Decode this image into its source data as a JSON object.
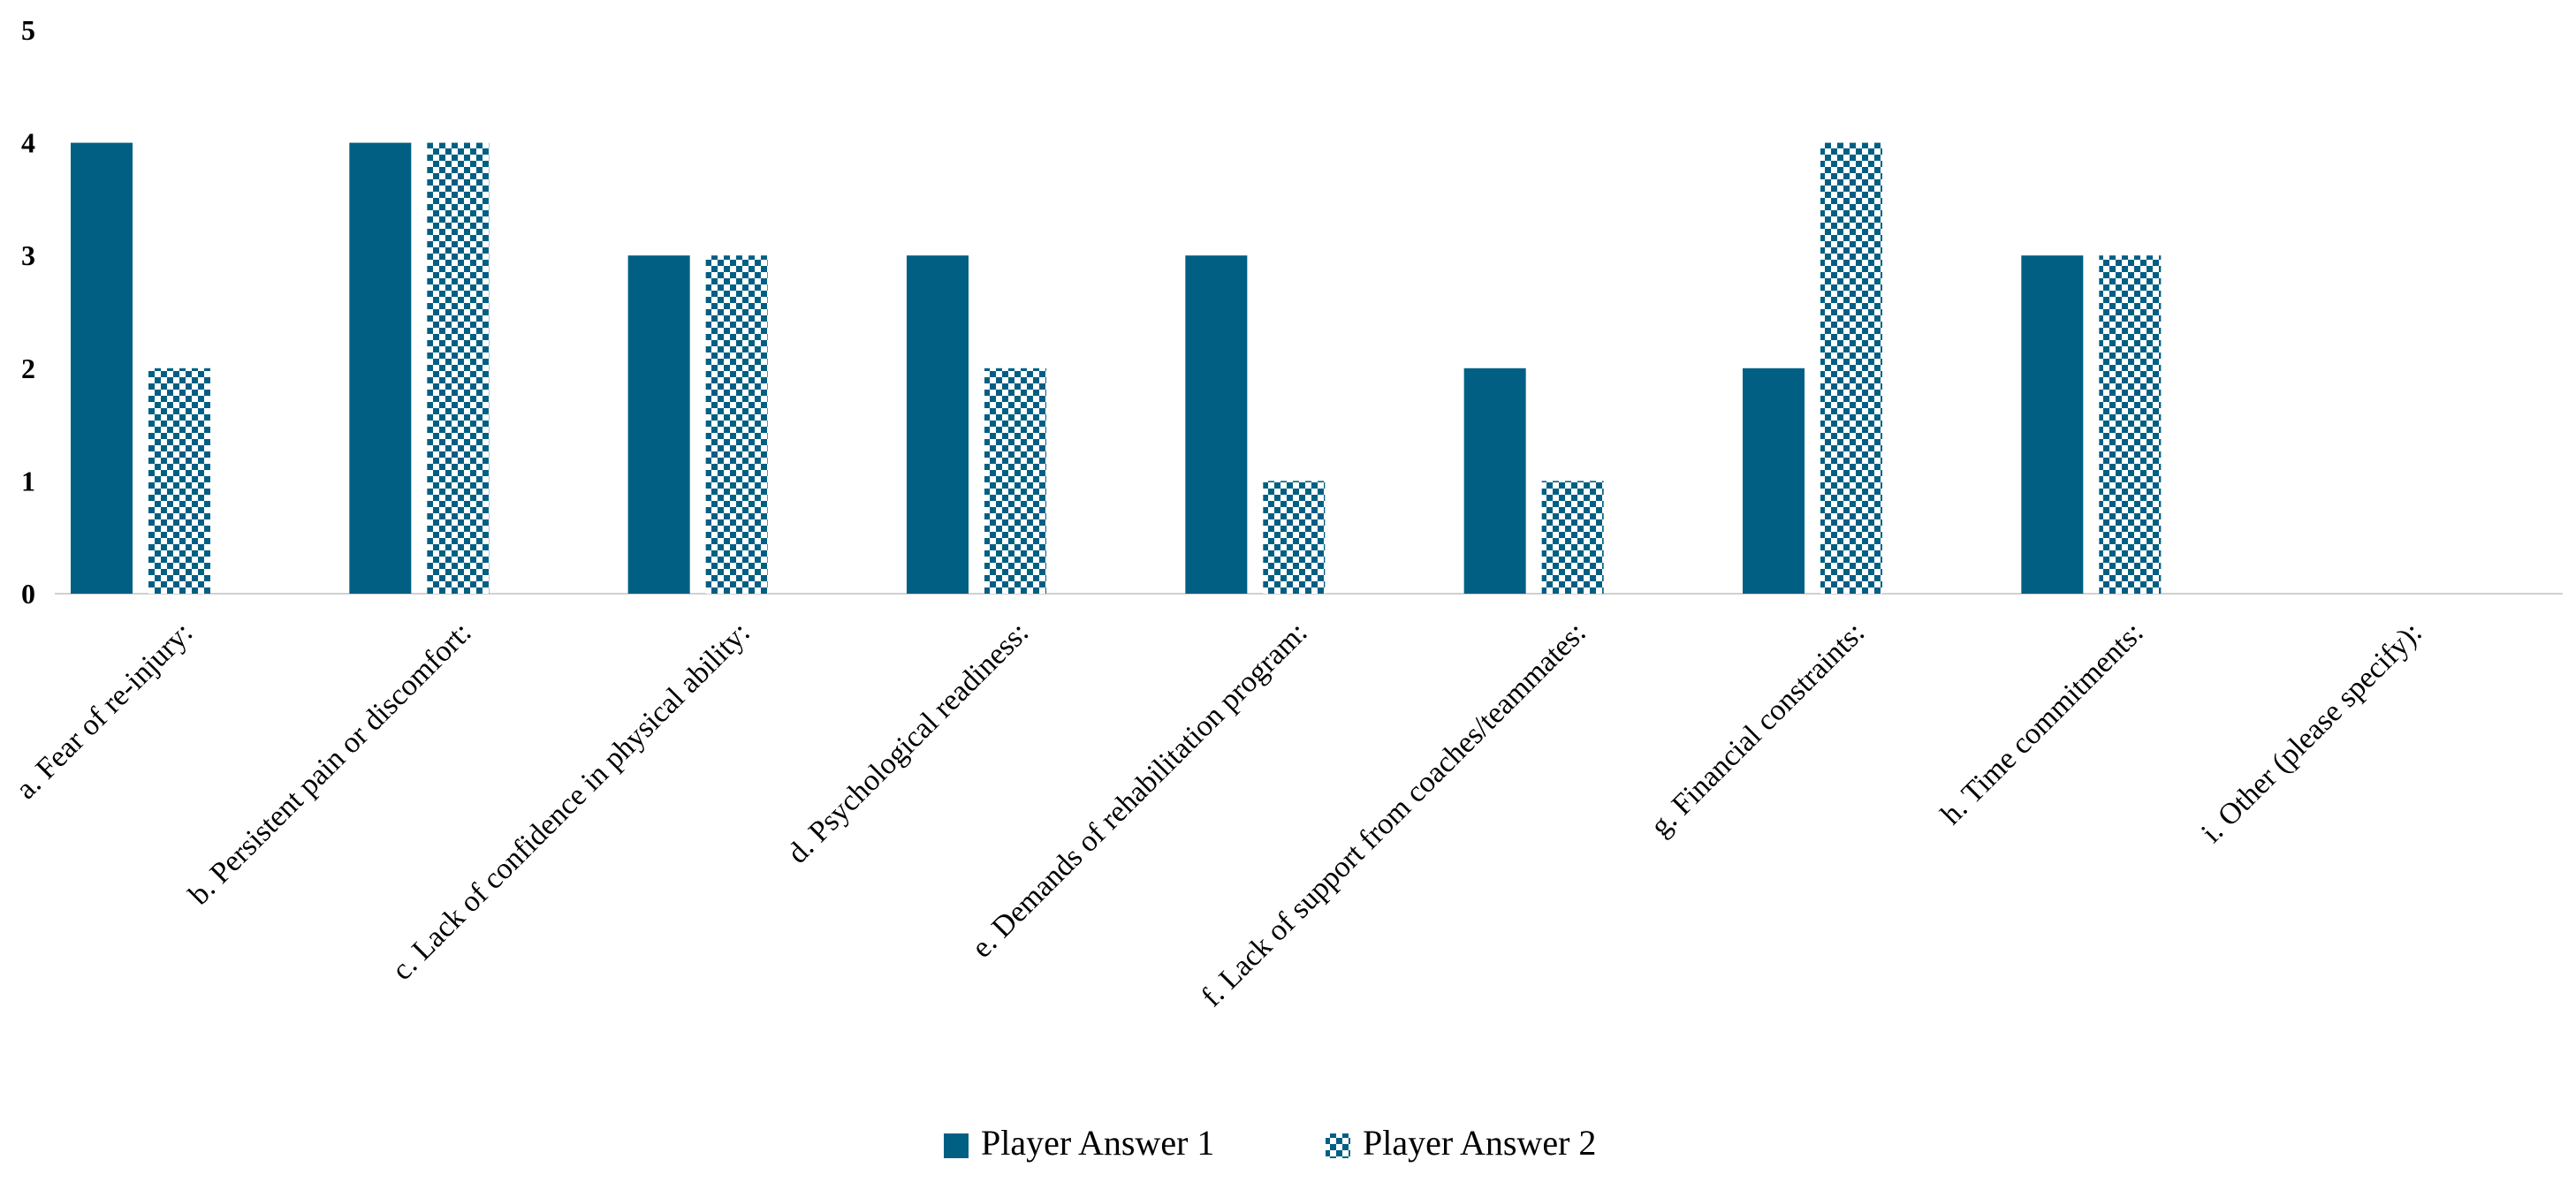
{
  "chart_data": {
    "type": "bar",
    "title": "",
    "xlabel": "",
    "ylabel": "",
    "ylim": [
      0,
      5
    ],
    "yticks": [
      0,
      1,
      2,
      3,
      4,
      5
    ],
    "grid": false,
    "legend_position": "bottom-center",
    "categories": [
      "a. Fear of re-injury:",
      "b.  Persistent pain or discomfort:",
      "c.  Lack of confidence in physical ability:",
      "d.  Psychological readiness:",
      "e.  Demands of rehabilitation program:",
      "f.  Lack of support from coaches/teammates:",
      "g.  Financial constraints:",
      "h.  Time commitments:",
      "i.  Other (please specify):"
    ],
    "series": [
      {
        "name": "Player Answer 1",
        "values": [
          4,
          4,
          3,
          3,
          3,
          2,
          2,
          3,
          0
        ],
        "color": "#005F83",
        "pattern": "solid"
      },
      {
        "name": "Player Answer 2",
        "values": [
          2,
          4,
          3,
          2,
          1,
          1,
          4,
          3,
          0
        ],
        "color": "#005F83",
        "pattern": "checkerboard"
      }
    ]
  }
}
